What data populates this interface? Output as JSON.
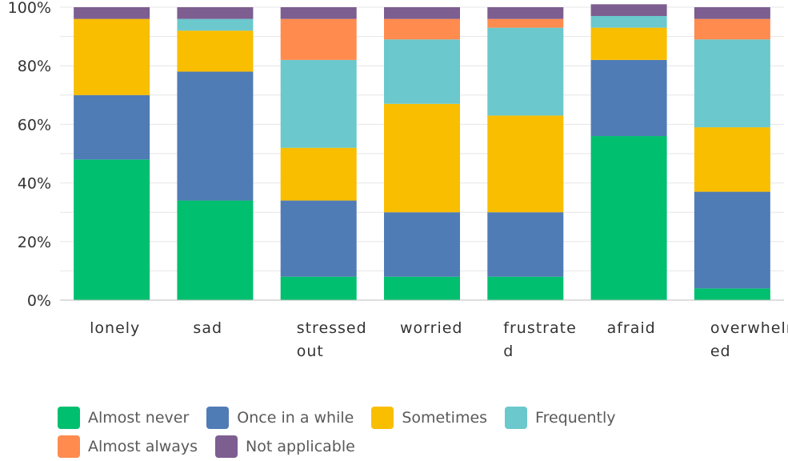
{
  "chart_data": {
    "type": "bar",
    "stacked": true,
    "percent": true,
    "categories": [
      "lonely",
      "sad",
      "stressed out",
      "worried",
      "frustrated",
      "afraid",
      "overwhelmed"
    ],
    "category_label_lines": [
      [
        "lonely"
      ],
      [
        "sad"
      ],
      [
        "stressed",
        "out"
      ],
      [
        "worried"
      ],
      [
        "frustrate",
        "d"
      ],
      [
        "afraid"
      ],
      [
        "overwhelm",
        "ed"
      ]
    ],
    "series": [
      {
        "name": "Almost never",
        "color": "#00BF6F",
        "values": [
          48,
          34,
          8,
          8,
          8,
          56,
          4
        ]
      },
      {
        "name": "Once in a while",
        "color": "#507CB6",
        "values": [
          22,
          44,
          26,
          22,
          22,
          26,
          33
        ]
      },
      {
        "name": "Sometimes",
        "color": "#F9BE00",
        "values": [
          26,
          14,
          18,
          37,
          33,
          11,
          22
        ]
      },
      {
        "name": "Frequently",
        "color": "#6BC8CD",
        "values": [
          0,
          4,
          30,
          22,
          30,
          4,
          30
        ]
      },
      {
        "name": "Almost always",
        "color": "#FF8B4F",
        "values": [
          0,
          0,
          14,
          7,
          3,
          0,
          7
        ]
      },
      {
        "name": "Not applicable",
        "color": "#7D5E90",
        "values": [
          4,
          4,
          4,
          4,
          4,
          4,
          4
        ]
      }
    ],
    "yticks": [
      "0%",
      "20%",
      "40%",
      "60%",
      "80%",
      "100%"
    ],
    "ylim": [
      0,
      100
    ],
    "grid": true,
    "legend_position": "bottom"
  },
  "legend": {
    "rows": [
      [
        "Almost never",
        "Once in a while",
        "Sometimes",
        "Frequently"
      ],
      [
        "Almost always",
        "Not applicable"
      ]
    ]
  }
}
